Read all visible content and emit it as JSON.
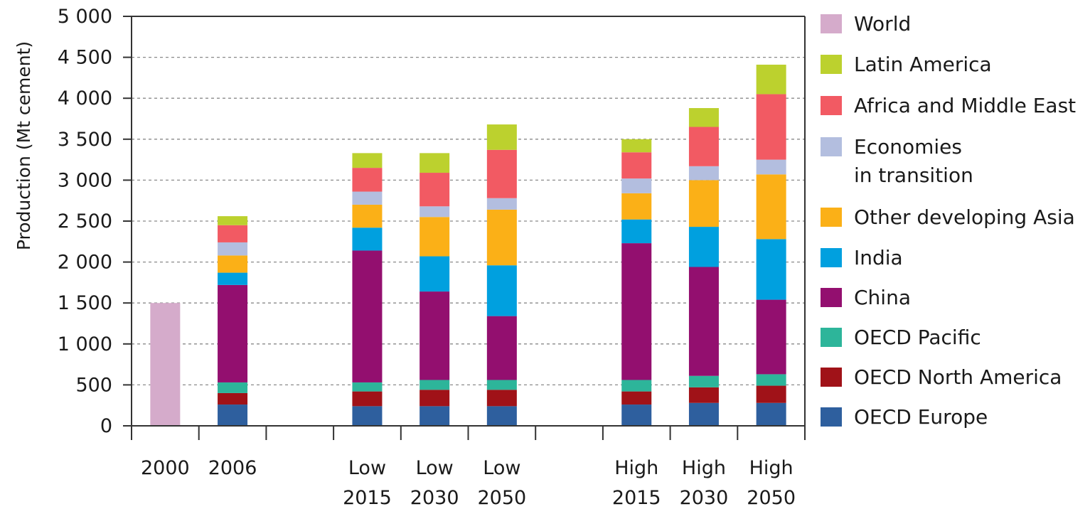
{
  "chart_data": {
    "type": "bar",
    "stacked": true,
    "ylabel": "Production (Mt cement)",
    "ylim": [
      0,
      5000
    ],
    "yticks": [
      0,
      500,
      1000,
      1500,
      2000,
      2500,
      3000,
      3500,
      4000,
      4500,
      5000
    ],
    "ytick_labels": [
      "0",
      "500",
      "1 000",
      "1 500",
      "2 000",
      "2 500",
      "3 000",
      "3 500",
      "4 000",
      "4 500",
      "5 000"
    ],
    "grid": "horizontal dashed",
    "legend_position": "right",
    "categories": [
      {
        "key": "2000",
        "lines": [
          "2000"
        ],
        "slot": 0
      },
      {
        "key": "2006",
        "lines": [
          "2006"
        ],
        "slot": 1
      },
      {
        "key": "Low 2015",
        "lines": [
          "Low",
          "2015"
        ],
        "slot": 3
      },
      {
        "key": "Low 2030",
        "lines": [
          "Low",
          "2030"
        ],
        "slot": 4
      },
      {
        "key": "Low 2050",
        "lines": [
          "Low",
          "2050"
        ],
        "slot": 5
      },
      {
        "key": "High 2015",
        "lines": [
          "High",
          "2015"
        ],
        "slot": 7
      },
      {
        "key": "High 2030",
        "lines": [
          "High",
          "2030"
        ],
        "slot": 8
      },
      {
        "key": "High 2050",
        "lines": [
          "High",
          "2050"
        ],
        "slot": 9
      }
    ],
    "series": [
      {
        "name": "OECD Europe",
        "color": "#2e5f9e",
        "values": [
          0,
          260,
          240,
          240,
          240,
          260,
          280,
          280
        ]
      },
      {
        "name": "OECD North America",
        "color": "#a01218",
        "values": [
          0,
          140,
          180,
          200,
          200,
          160,
          190,
          210
        ]
      },
      {
        "name": "OECD Pacific",
        "color": "#2db59a",
        "values": [
          0,
          130,
          110,
          120,
          120,
          140,
          140,
          140
        ]
      },
      {
        "name": "China",
        "color": "#930f6f",
        "values": [
          0,
          1190,
          1610,
          1080,
          780,
          1670,
          1330,
          910
        ]
      },
      {
        "name": "India",
        "color": "#00a0df",
        "values": [
          0,
          150,
          280,
          430,
          620,
          290,
          490,
          740
        ]
      },
      {
        "name": "Other developing Asia",
        "color": "#fbb017",
        "values": [
          0,
          210,
          280,
          480,
          680,
          320,
          570,
          790
        ]
      },
      {
        "name": "Economies in transition",
        "color": "#b3bedf",
        "values": [
          0,
          160,
          160,
          130,
          140,
          180,
          170,
          180
        ]
      },
      {
        "name": "Africa and Middle East",
        "color": "#f25a63",
        "values": [
          0,
          210,
          290,
          410,
          590,
          320,
          480,
          800
        ]
      },
      {
        "name": "Latin America",
        "color": "#bcd12e",
        "values": [
          0,
          110,
          180,
          240,
          310,
          160,
          230,
          360
        ]
      },
      {
        "name": "World",
        "color": "#d5abcb",
        "values": [
          1500,
          0,
          0,
          0,
          0,
          0,
          0,
          0
        ]
      }
    ],
    "legend": [
      {
        "lines": [
          "World"
        ],
        "color": "#d5abcb"
      },
      {
        "lines": [
          "Latin America"
        ],
        "color": "#bcd12e"
      },
      {
        "lines": [
          "Africa and Middle East"
        ],
        "color": "#f25a63"
      },
      {
        "lines": [
          "Economies",
          "in transition"
        ],
        "color": "#b3bedf"
      },
      {
        "lines": [
          "Other developing Asia"
        ],
        "color": "#fbb017"
      },
      {
        "lines": [
          "India"
        ],
        "color": "#00a0df"
      },
      {
        "lines": [
          "China"
        ],
        "color": "#930f6f"
      },
      {
        "lines": [
          "OECD Pacific"
        ],
        "color": "#2db59a"
      },
      {
        "lines": [
          "OECD North America"
        ],
        "color": "#a01218"
      },
      {
        "lines": [
          "OECD Europe"
        ],
        "color": "#2e5f9e"
      }
    ]
  }
}
